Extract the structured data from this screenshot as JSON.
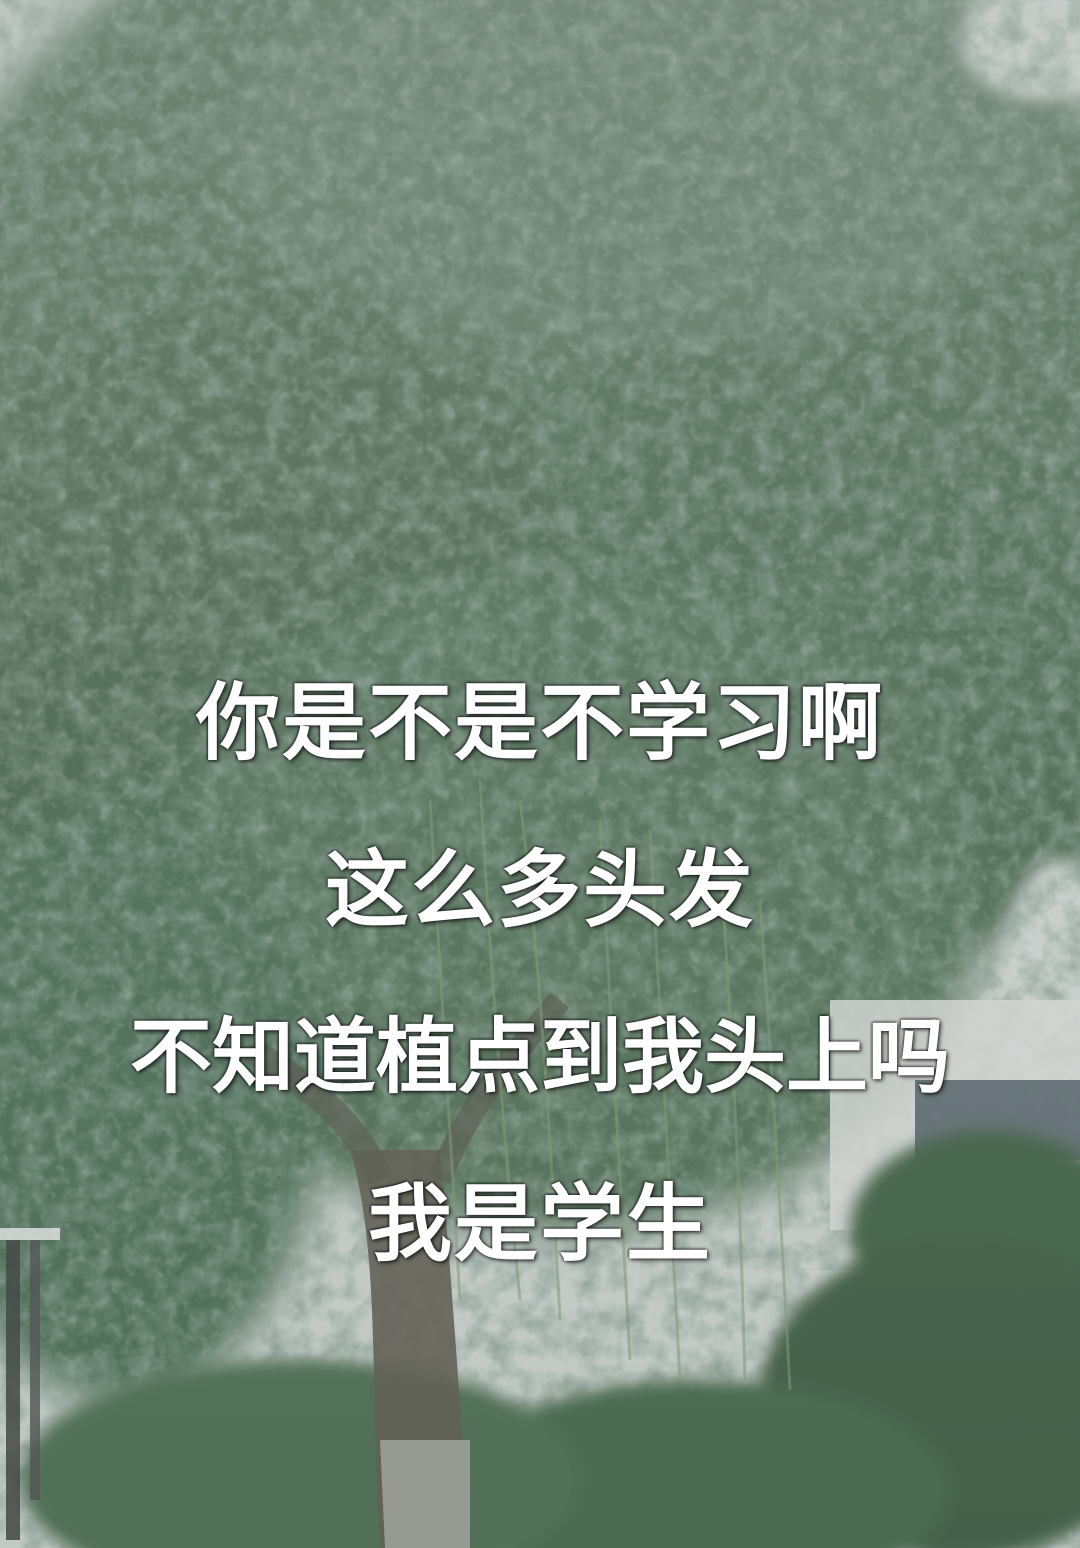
{
  "caption": {
    "lines": [
      "你是不是不学习啊",
      "这么多头发",
      "不知道植点到我头上吗",
      "我是学生"
    ],
    "color": "#ffffff"
  },
  "scene": {
    "description_icon": "tree-photo",
    "colors": {
      "sky": "#c9cfcc",
      "foliage_dark": "#3f5a46",
      "foliage_mid": "#5a7a5f",
      "foliage_light": "#8aa68a",
      "trunk": "#5d5a50",
      "building": "#d9dbd9"
    }
  }
}
